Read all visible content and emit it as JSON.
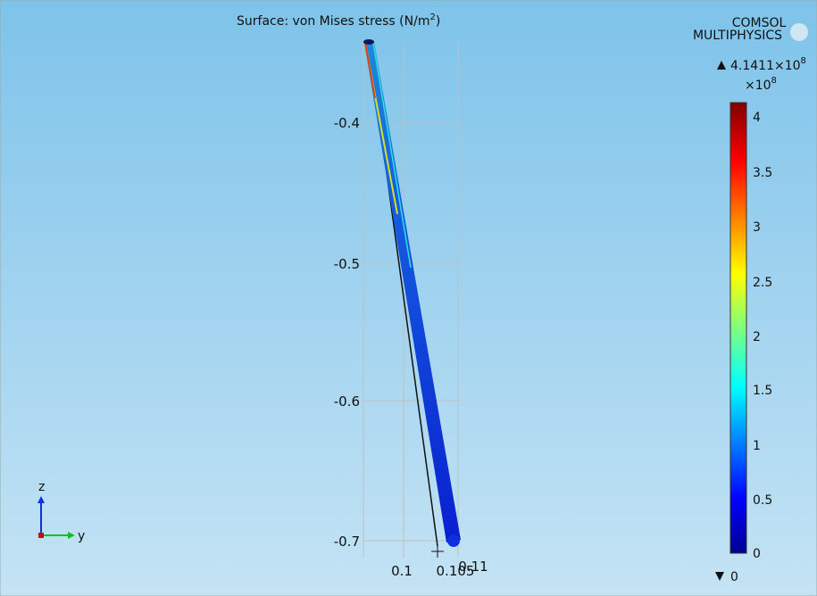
{
  "plot": {
    "title": {
      "text": "Surface: von Mises stress (N/m",
      "superscript": "2",
      "close": ")"
    },
    "logo": {
      "line1": "COMSOL",
      "line2": "MULTIPHYSICS"
    },
    "y_ticks": [
      "-0.4",
      "-0.5",
      "-0.6",
      "-0.7"
    ],
    "x_ticks": [
      "0.1",
      "0.105",
      "0.11"
    ],
    "axes_triad": {
      "vertical": "z",
      "horizontal": "y"
    }
  },
  "colorbar": {
    "max": {
      "value": "4.1411",
      "times": "×10",
      "exponent": "8"
    },
    "multiplier": {
      "times": "×10",
      "exponent": "8"
    },
    "ticks": [
      "4",
      "3.5",
      "3",
      "2.5",
      "2",
      "1.5",
      "1",
      "0.5",
      "0"
    ],
    "min": "0"
  }
}
